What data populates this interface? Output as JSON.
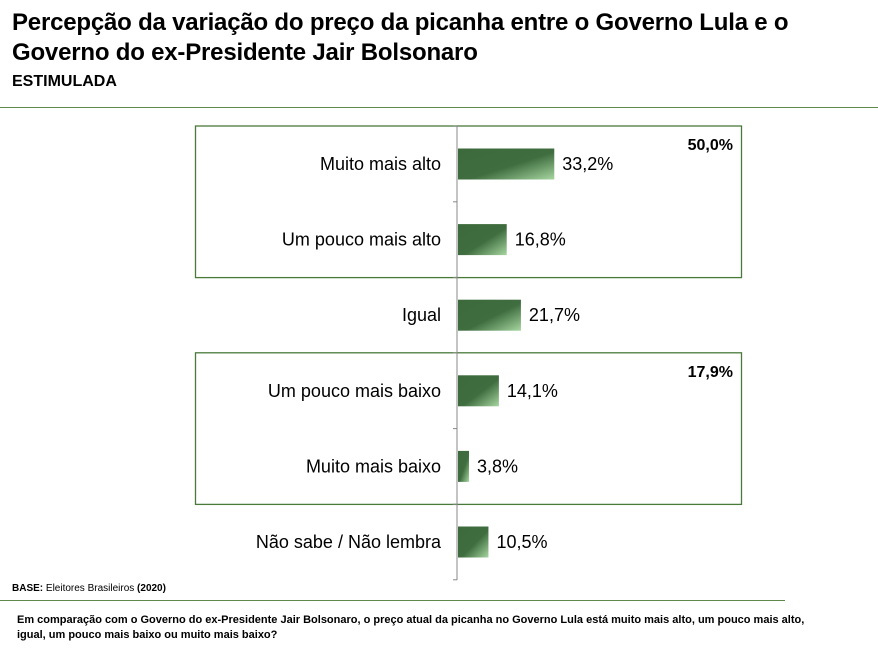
{
  "header": {
    "title": "Percepção da variação do preço da picanha entre o Governo Lula e o Governo do ex-Presidente Jair Bolsonaro",
    "subtitle": "ESTIMULADA"
  },
  "footer": {
    "base_label": "BASE:",
    "base_text": " Eleitores Brasileiros ",
    "base_year": "(2020)",
    "question": "Em comparação com o Governo do ex-Presidente Jair Bolsonaro, o preço atual da picanha no Governo Lula está muito mais alto, um pouco mais alto, igual, um pouco mais baixo ou muito mais baixo?"
  },
  "chart_data": {
    "type": "bar",
    "orientation": "horizontal",
    "categories": [
      "Muito mais alto",
      "Um pouco mais alto",
      "Igual",
      "Um pouco mais baixo",
      "Muito mais baixo",
      "Não sabe / Não lembra"
    ],
    "values": [
      33.2,
      16.8,
      21.7,
      14.1,
      3.8,
      10.5
    ],
    "value_labels": [
      "33,2%",
      "16,8%",
      "21,7%",
      "14,1%",
      "3,8%",
      "10,5%"
    ],
    "groups": [
      {
        "members": [
          0,
          1
        ],
        "total_label": "50,0%"
      },
      {
        "members": [
          3,
          4
        ],
        "total_label": "17,9%"
      }
    ],
    "xlim": [
      0,
      100
    ],
    "grid": false,
    "colors": {
      "bar_dark": "#3c6a3c",
      "bar_light": "#a6d6a0",
      "box_border": "#4a7a3a",
      "axis": "#888888"
    }
  }
}
